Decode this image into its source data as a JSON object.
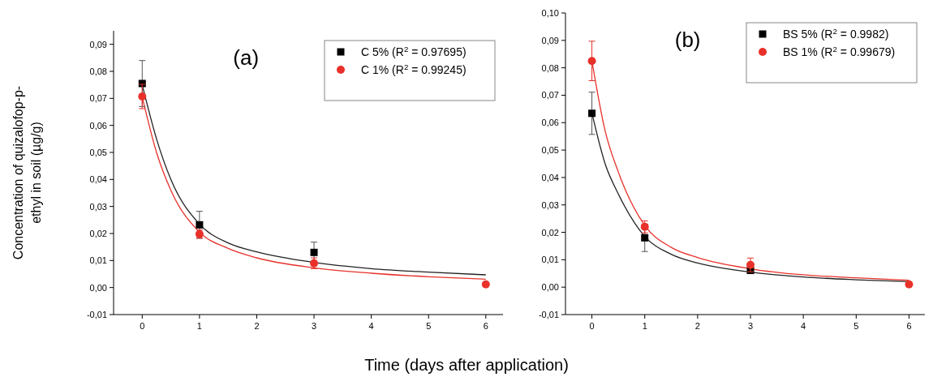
{
  "chart_data": [
    {
      "type": "scatter",
      "title": "(a)",
      "ylabel": "Concentration of quizalofop-p-ethyl in soil (µg/g)",
      "xlabel": "Time (days after application)",
      "xlim": [
        -0.5,
        6.3
      ],
      "xticks": [
        0,
        1,
        2,
        3,
        4,
        5,
        6
      ],
      "ylim": [
        -0.01,
        0.095
      ],
      "yticks": [
        {
          "value": -0.01,
          "label": "-0,01"
        },
        {
          "value": 0,
          "label": "0,00"
        },
        {
          "value": 0.01,
          "label": "0,01"
        },
        {
          "value": 0.02,
          "label": "0,02"
        },
        {
          "value": 0.03,
          "label": "0,03"
        },
        {
          "value": 0.04,
          "label": "0,04"
        },
        {
          "value": 0.05,
          "label": "0,05"
        },
        {
          "value": 0.06,
          "label": "0,06"
        },
        {
          "value": 0.07,
          "label": "0,07"
        },
        {
          "value": 0.08,
          "label": "0,08"
        },
        {
          "value": 0.09,
          "label": "0,09"
        }
      ],
      "legend": "top right",
      "grid": false,
      "series": [
        {
          "type": "line",
          "color": "#222222",
          "marker": "none",
          "x": [
            0,
            0.25,
            0.5,
            1,
            1.5,
            2,
            3,
            4,
            5,
            6
          ],
          "values": [
            0.075,
            0.055,
            0.04,
            0.0235,
            0.0165,
            0.0132,
            0.0093,
            0.007,
            0.0057,
            0.0047
          ]
        },
        {
          "type": "line",
          "color": "#e8312a",
          "marker": "none",
          "x": [
            0,
            0.25,
            0.5,
            1,
            1.5,
            2,
            3,
            4,
            5,
            6
          ],
          "values": [
            0.0705,
            0.05,
            0.036,
            0.0205,
            0.0145,
            0.011,
            0.0073,
            0.0053,
            0.004,
            0.0031
          ]
        },
        {
          "name": "C 5% (R$^{2}$ = 0.97695)",
          "color": "#000000",
          "marker": "square",
          "x": [
            0,
            1,
            3
          ],
          "values": [
            0.0755,
            0.0232,
            0.013
          ],
          "errors": [
            0.0085,
            0.005,
            0.0038
          ]
        },
        {
          "name": "C 1% (R$^{2}$ = 0.99245)",
          "color": "#e8312a",
          "marker": "circle",
          "x": [
            0,
            1,
            3,
            6
          ],
          "values": [
            0.0707,
            0.0198,
            0.009,
            0.0012
          ],
          "errors": [
            0.0045,
            0.0015,
            0.002,
            null
          ]
        }
      ]
    },
    {
      "type": "scatter",
      "title": "(b)",
      "xlim": [
        -0.5,
        6.3
      ],
      "xticks": [
        0,
        1,
        2,
        3,
        4,
        5,
        6
      ],
      "ylim": [
        -0.01,
        0.1
      ],
      "yticks": [
        {
          "value": -0.01,
          "label": "-0,01"
        },
        {
          "value": 0,
          "label": "0,00"
        },
        {
          "value": 0.01,
          "label": "0,01"
        },
        {
          "value": 0.02,
          "label": "0,02"
        },
        {
          "value": 0.03,
          "label": "0,03"
        },
        {
          "value": 0.04,
          "label": "0,04"
        },
        {
          "value": 0.05,
          "label": "0,05"
        },
        {
          "value": 0.06,
          "label": "0,06"
        },
        {
          "value": 0.07,
          "label": "0,07"
        },
        {
          "value": 0.08,
          "label": "0,08"
        },
        {
          "value": 0.09,
          "label": "0,09"
        },
        {
          "value": 0.1,
          "label": "0,10"
        }
      ],
      "legend": "top right",
      "grid": false,
      "series": [
        {
          "type": "line",
          "color": "#222222",
          "marker": "none",
          "x": [
            0,
            0.25,
            0.5,
            1,
            1.5,
            2,
            3,
            4,
            5,
            6
          ],
          "values": [
            0.0635,
            0.045,
            0.034,
            0.0185,
            0.012,
            0.0088,
            0.0055,
            0.0037,
            0.0027,
            0.002
          ]
        },
        {
          "type": "line",
          "color": "#e8312a",
          "marker": "none",
          "x": [
            0,
            0.25,
            0.5,
            1,
            1.5,
            2,
            3,
            4,
            5,
            6
          ],
          "values": [
            0.0825,
            0.057,
            0.042,
            0.0225,
            0.0145,
            0.0108,
            0.0067,
            0.0045,
            0.0034,
            0.0025
          ]
        },
        {
          "name": "BS 5% (R$^{2}$ = 0.9982)",
          "color": "#000000",
          "marker": "square",
          "x": [
            0,
            1,
            3
          ],
          "values": [
            0.0634,
            0.018,
            0.0061
          ],
          "errors": [
            0.0077,
            0.005,
            null
          ]
        },
        {
          "name": "BS 1% (R$^{2}$ = 0.99679)",
          "color": "#e8312a",
          "marker": "circle",
          "x": [
            0,
            1,
            3,
            6
          ],
          "values": [
            0.0825,
            0.022,
            0.0081,
            0.001
          ],
          "errors": [
            0.0072,
            0.0022,
            0.0025,
            null
          ]
        }
      ]
    }
  ]
}
